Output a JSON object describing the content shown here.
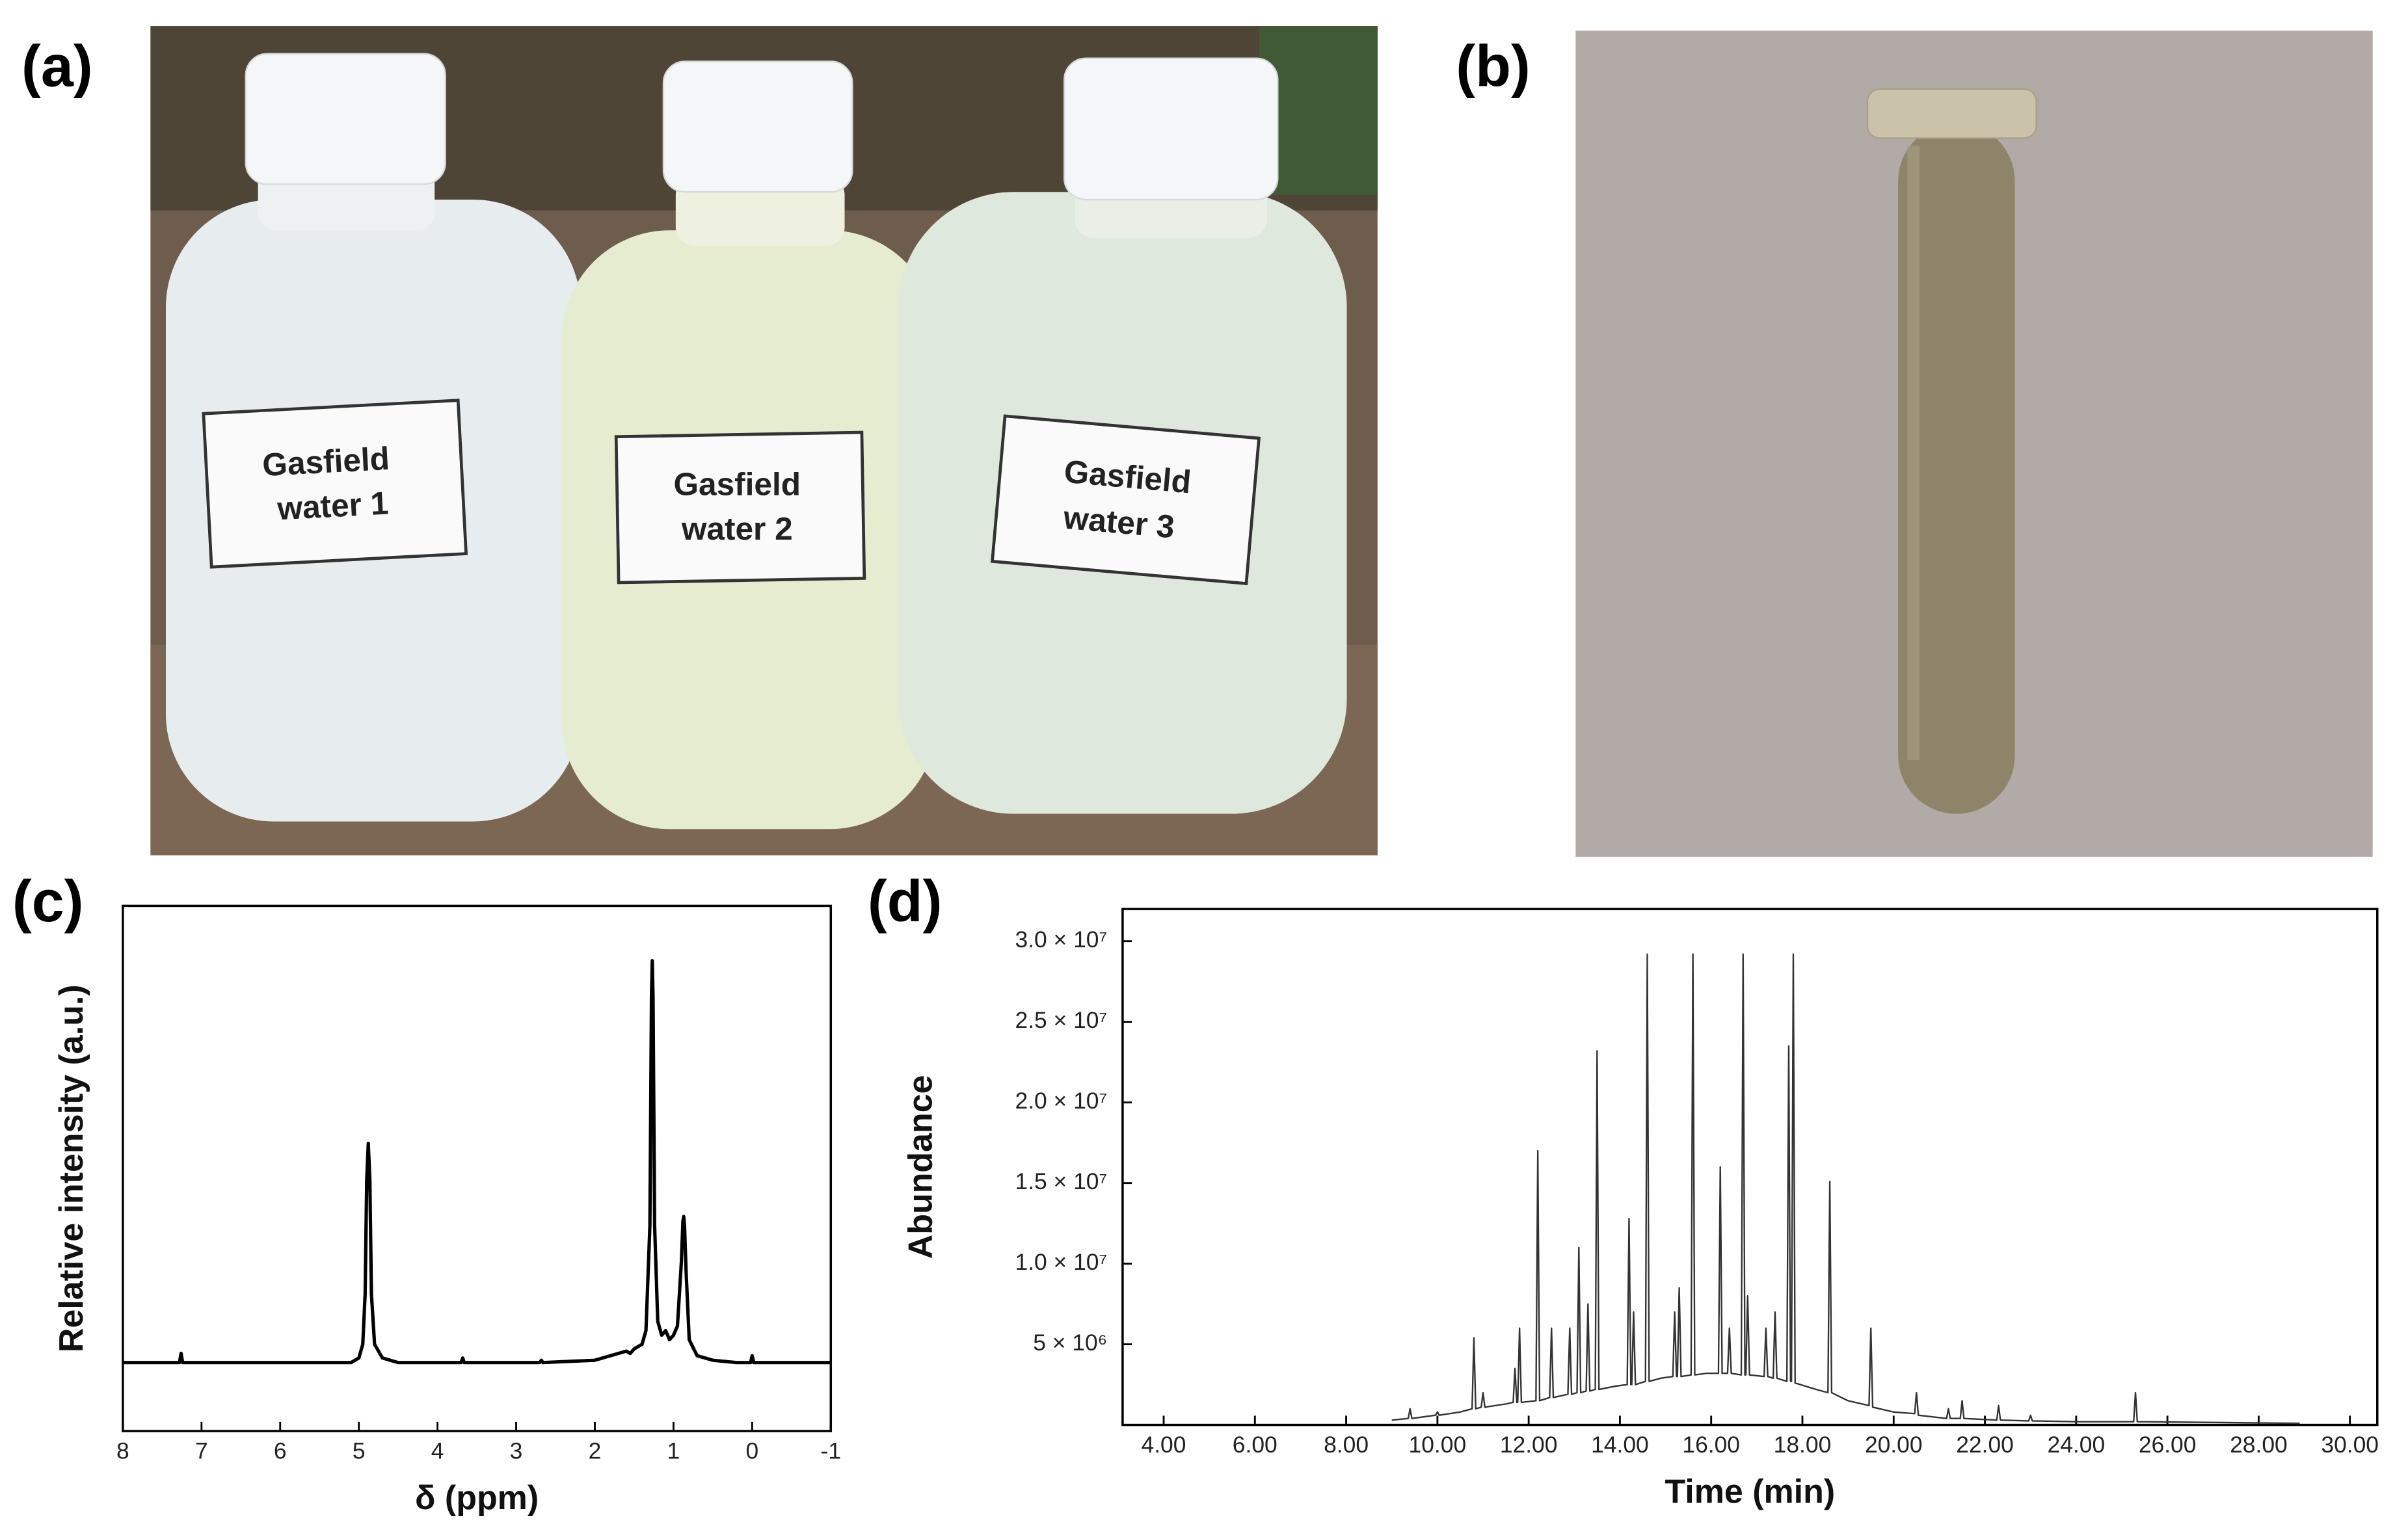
{
  "panel_labels": [
    "(a)",
    "(b)",
    "(c)",
    "(d)"
  ],
  "photo_a": {
    "bottles": [
      {
        "lines": [
          "Gasfield",
          "water 1"
        ]
      },
      {
        "lines": [
          "Gasfield",
          "water 2"
        ]
      },
      {
        "lines": [
          "Gasfield",
          "water 3"
        ]
      }
    ]
  },
  "chart_data": [
    {
      "type": "line",
      "xlabel": "δ (ppm)",
      "ylabel": "Relative intensity (a.u.)",
      "color": "#000000",
      "xlim": [
        8,
        -1
      ],
      "xticks": [
        8,
        7,
        6,
        5,
        4,
        3,
        2,
        1,
        0,
        -1
      ],
      "ylim": [
        -0.15,
        1.0
      ],
      "x": [
        8,
        7.28,
        7.26,
        7.24,
        5.1,
        5.0,
        4.95,
        4.92,
        4.9,
        4.88,
        4.86,
        4.84,
        4.8,
        4.7,
        4.5,
        3.7,
        3.68,
        3.66,
        2.7,
        2.68,
        2.66,
        2.0,
        1.8,
        1.7,
        1.6,
        1.55,
        1.5,
        1.45,
        1.4,
        1.35,
        1.3,
        1.28,
        1.27,
        1.26,
        1.24,
        1.2,
        1.15,
        1.1,
        1.05,
        1.0,
        0.95,
        0.9,
        0.88,
        0.87,
        0.86,
        0.84,
        0.8,
        0.7,
        0.5,
        0.2,
        0.02,
        0,
        -0.02,
        -1
      ],
      "values": [
        0,
        0,
        0.02,
        0,
        0,
        0.01,
        0.04,
        0.15,
        0.4,
        0.48,
        0.4,
        0.15,
        0.04,
        0.01,
        0,
        0,
        0.01,
        0,
        0,
        0.005,
        0,
        0.005,
        0.015,
        0.02,
        0.025,
        0.02,
        0.03,
        0.035,
        0.04,
        0.07,
        0.3,
        0.8,
        0.88,
        0.8,
        0.3,
        0.09,
        0.06,
        0.07,
        0.05,
        0.06,
        0.08,
        0.22,
        0.31,
        0.32,
        0.3,
        0.2,
        0.05,
        0.015,
        0.005,
        0,
        0,
        0.015,
        0,
        0
      ]
    },
    {
      "type": "line",
      "xlabel": "Time (min)",
      "ylabel": "Abundance",
      "color": "#333333",
      "xlim": [
        3.1,
        30.6
      ],
      "xticks": [
        {
          "value": 4,
          "label": "4.00"
        },
        {
          "value": 6,
          "label": "6.00"
        },
        {
          "value": 8,
          "label": "8.00"
        },
        {
          "value": 10,
          "label": "10.00"
        },
        {
          "value": 12,
          "label": "12.00"
        },
        {
          "value": 14,
          "label": "14.00"
        },
        {
          "value": 16,
          "label": "16.00"
        },
        {
          "value": 18,
          "label": "18.00"
        },
        {
          "value": 20,
          "label": "20.00"
        },
        {
          "value": 22,
          "label": "22.00"
        },
        {
          "value": 24,
          "label": "24.00"
        },
        {
          "value": 26,
          "label": "26.00"
        },
        {
          "value": 28,
          "label": "28.00"
        },
        {
          "value": 30,
          "label": "30.00"
        }
      ],
      "ylim": [
        0,
        32000000
      ],
      "yticks": [
        {
          "value": 5000000,
          "label": "5 × 10⁶"
        },
        {
          "value": 10000000,
          "label": "1.0 × 10⁷"
        },
        {
          "value": 15000000,
          "label": "1.5 × 10⁷"
        },
        {
          "value": 20000000,
          "label": "2.0 × 10⁷"
        },
        {
          "value": 25000000,
          "label": "2.5 × 10⁷"
        },
        {
          "value": 30000000,
          "label": "3.0 × 10⁷"
        }
      ],
      "x": [
        9.0,
        9.36,
        9.4,
        9.44,
        9.96,
        10.0,
        10.04,
        10.5,
        10.76,
        10.8,
        10.84,
        10.96,
        11.0,
        11.04,
        11.5,
        11.66,
        11.7,
        11.74,
        11.76,
        11.8,
        11.84,
        12.16,
        12.2,
        12.24,
        12.46,
        12.5,
        12.54,
        12.86,
        12.9,
        12.94,
        13.06,
        13.1,
        13.14,
        13.26,
        13.3,
        13.34,
        13.46,
        13.5,
        13.54,
        13.9,
        14.16,
        14.2,
        14.24,
        14.26,
        14.3,
        14.34,
        14.56,
        14.6,
        14.64,
        14.9,
        15.16,
        15.2,
        15.24,
        15.26,
        15.3,
        15.34,
        15.56,
        15.6,
        15.64,
        15.9,
        16.16,
        16.2,
        16.24,
        16.36,
        16.4,
        16.44,
        16.66,
        16.7,
        16.74,
        16.76,
        16.8,
        16.84,
        17.16,
        17.2,
        17.24,
        17.36,
        17.4,
        17.44,
        17.66,
        17.7,
        17.74,
        17.76,
        17.8,
        17.84,
        18.3,
        18.56,
        18.6,
        18.64,
        19.0,
        19.46,
        19.5,
        19.54,
        20.0,
        20.46,
        20.5,
        20.54,
        21.16,
        21.2,
        21.24,
        21.46,
        21.5,
        21.54,
        22.26,
        22.3,
        22.34,
        22.96,
        23.0,
        23.04,
        24.0,
        25.26,
        25.3,
        25.34,
        28.9
      ],
      "values": [
        300000,
        400000,
        1000000,
        400000,
        600000,
        800000,
        600000,
        800000,
        1000000,
        5400000,
        1000000,
        1100000,
        2000000,
        1100000,
        1300000,
        1400000,
        3500000,
        1400000,
        1400000,
        6000000,
        1400000,
        1500000,
        17000000,
        1500000,
        1700000,
        6000000,
        1700000,
        1900000,
        6000000,
        1900000,
        2000000,
        11000000,
        2000000,
        2100000,
        7500000,
        2100000,
        2200000,
        23200000,
        2200000,
        2400000,
        2500000,
        12800000,
        2500000,
        2500000,
        7000000,
        2500000,
        2700000,
        29200000,
        2700000,
        2900000,
        3000000,
        7000000,
        3000000,
        3000000,
        8500000,
        3000000,
        3100000,
        29200000,
        3100000,
        3200000,
        3200000,
        16000000,
        3200000,
        3200000,
        6000000,
        3200000,
        3100000,
        29200000,
        3100000,
        3100000,
        8000000,
        3100000,
        3000000,
        6000000,
        3000000,
        2900000,
        7000000,
        2900000,
        2700000,
        23500000,
        2700000,
        2700000,
        29200000,
        2600000,
        2200000,
        2000000,
        15100000,
        2000000,
        1500000,
        1200000,
        6000000,
        1100000,
        800000,
        700000,
        2000000,
        600000,
        400000,
        1000000,
        400000,
        400000,
        1500000,
        400000,
        300000,
        1200000,
        300000,
        250000,
        600000,
        250000,
        200000,
        200000,
        2000000,
        200000,
        100000
      ]
    }
  ]
}
